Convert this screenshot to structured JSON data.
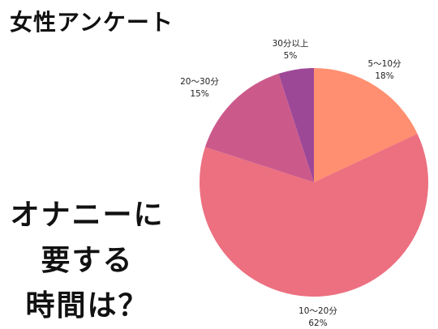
{
  "title": "女性アンケート",
  "headline": [
    "オナニーに",
    "要する",
    "時間は？"
  ],
  "chart_data": {
    "type": "pie",
    "title": "",
    "slices": [
      {
        "label": "5〜10分",
        "value": 18,
        "percent_label": "18%",
        "color": "#FF8F70"
      },
      {
        "label": "10〜20分",
        "value": 62,
        "percent_label": "62%",
        "color": "#EC7080"
      },
      {
        "label": "20〜30分",
        "value": 15,
        "percent_label": "15%",
        "color": "#CB5A8B"
      },
      {
        "label": "30分以上",
        "value": 5,
        "percent_label": "5%",
        "color": "#9D4797"
      }
    ],
    "start": "top",
    "direction": "clockwise",
    "legend": "none"
  }
}
